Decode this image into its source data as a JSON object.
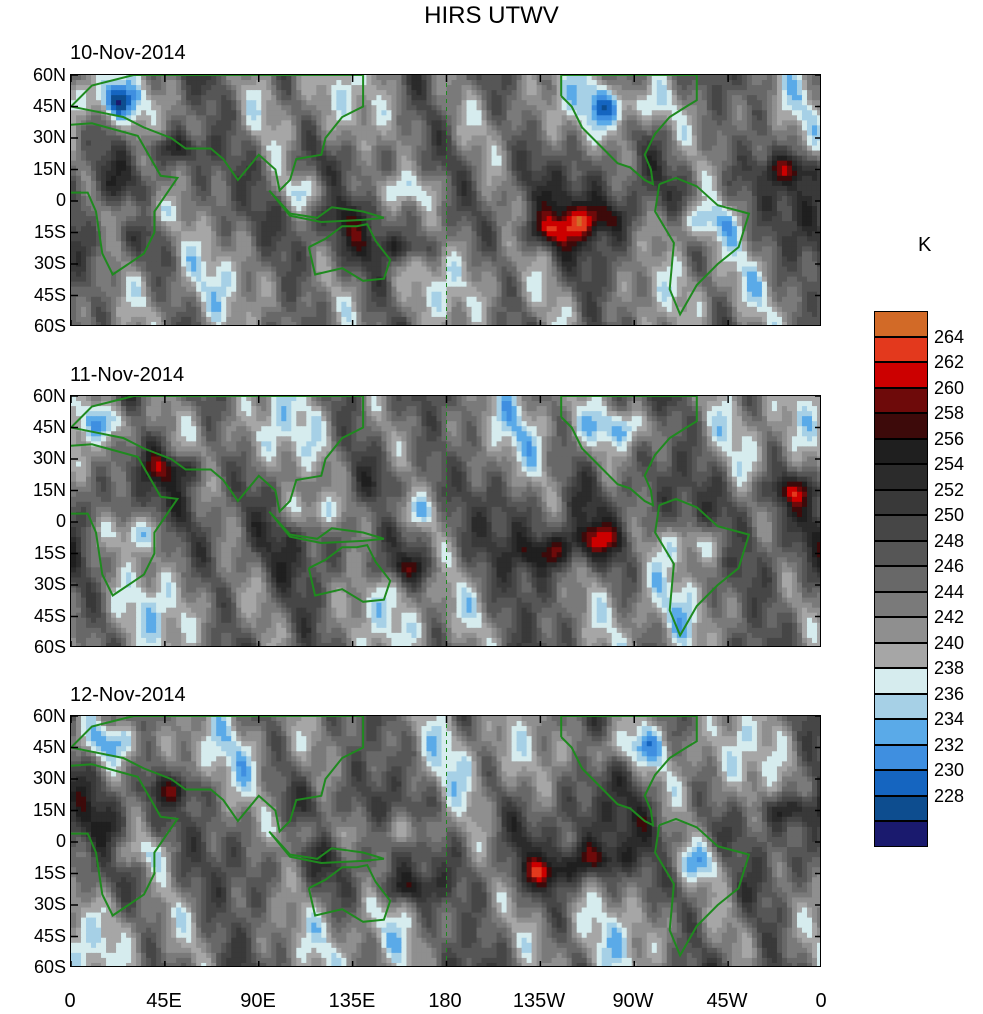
{
  "chart_data": {
    "type": "heatmap",
    "title": "HIRS UTWV",
    "panels": [
      {
        "date": "10-Nov-2014"
      },
      {
        "date": "11-Nov-2014"
      },
      {
        "date": "12-Nov-2014"
      }
    ],
    "x_tick_labels": [
      "0",
      "45E",
      "90E",
      "135E",
      "180",
      "135W",
      "90W",
      "45W",
      "0"
    ],
    "y_tick_labels": [
      "60N",
      "45N",
      "30N",
      "15N",
      "0",
      "15S",
      "30S",
      "45S",
      "60S"
    ],
    "xlim": [
      0,
      360
    ],
    "ylim": [
      -60,
      60
    ],
    "colorbar": {
      "unit": "K",
      "levels": [
        "228",
        "230",
        "232",
        "234",
        "236",
        "238",
        "240",
        "242",
        "244",
        "246",
        "248",
        "250",
        "252",
        "254",
        "256",
        "258",
        "260",
        "262",
        "264"
      ],
      "colors": [
        "#1a1a6e",
        "#0d4d8f",
        "#1565c0",
        "#3f8fe0",
        "#5aaae8",
        "#a6d0e6",
        "#d6ecee",
        "#a6a6a6",
        "#8f8f8f",
        "#7a7a7a",
        "#686868",
        "#565656",
        "#464646",
        "#393939",
        "#2b2b2b",
        "#1f1f1f",
        "#3d0a0a",
        "#6e0a0a",
        "#cc0000",
        "#e3391d",
        "#d26a27"
      ]
    }
  }
}
